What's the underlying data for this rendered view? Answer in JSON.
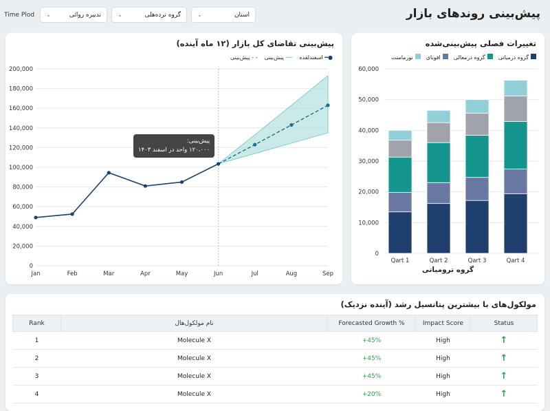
{
  "header": {
    "title": "پیش‌بینی روندهای بازار",
    "time_label": "Time Plod",
    "filters": [
      "تدبیره روائی",
      "گروه ترده‌هلی",
      "استان"
    ]
  },
  "line_card": {
    "title": "پیش‌بینی تقاضای کل بازار (۱۲ ماه آینده)",
    "legend": [
      "اسفندلقده",
      "پیش‌بینی",
      "پیش‌بینی"
    ],
    "tooltip": {
      "line1": "پیش‌بینی:",
      "line2": "۱۲۰،۰۰۰ واحد در اسفند ۱۴۰۳"
    }
  },
  "chart_data": [
    {
      "type": "line",
      "title": "پیش‌بینی تقاضای کل بازار (۱۲ ماه آینده)",
      "x": [
        "Jan",
        "Feb",
        "Mar",
        "Apr",
        "May",
        "Jun",
        "Jul",
        "Aug",
        "Sep"
      ],
      "ylim": [
        0,
        200000
      ],
      "yticks": [
        "0",
        "20,000",
        "40,000",
        "60,000",
        "80,000",
        "100,000",
        "120,000",
        "140,000",
        "160,000",
        "180,000",
        "200,000"
      ],
      "series": [
        {
          "name": "اسفندلقده",
          "values": [
            49000,
            52500,
            94500,
            81000,
            85000,
            103500,
            null,
            null,
            null
          ]
        },
        {
          "name": "پیش‌بینی",
          "values": [
            null,
            null,
            null,
            null,
            null,
            103500,
            123000,
            143000,
            163000
          ]
        },
        {
          "name": "پیش‌بینی band upper",
          "values": [
            null,
            null,
            null,
            null,
            null,
            103500,
            133000,
            163000,
            193000
          ]
        },
        {
          "name": "پیش‌بینی band lower",
          "values": [
            null,
            null,
            null,
            null,
            null,
            103500,
            114000,
            124500,
            135000
          ]
        }
      ],
      "grid": true,
      "legend": "top-right"
    },
    {
      "type": "bar",
      "stacked": true,
      "title": "تغییرات فصلی پیش‌بینی‌شده",
      "xlabel": "گروه ترومیاتی",
      "categories": [
        "Qart 1",
        "Qart 2",
        "Qart 3",
        "Qart 4"
      ],
      "ylim": [
        0,
        60000
      ],
      "yticks": [
        "0",
        "10,000",
        "20,000",
        "30,000",
        "40,000",
        "50,000",
        "60,000"
      ],
      "series": [
        {
          "name": "گروه درمیانی",
          "color": "#1f3f6e",
          "values": [
            13500,
            16200,
            17200,
            19400
          ]
        },
        {
          "name": "افوبای",
          "color": "#6878a3",
          "values": [
            6300,
            6800,
            7500,
            8000
          ]
        },
        {
          "name": "گروه درمعالی",
          "color": "#14968f",
          "values": [
            11500,
            13000,
            13700,
            15500
          ]
        },
        {
          "name": "",
          "color": "#a0a3ab",
          "values": [
            5500,
            6500,
            7200,
            8300
          ]
        },
        {
          "name": "نورمامنت",
          "color": "#93cfd8",
          "values": [
            3200,
            4000,
            4400,
            5100
          ]
        }
      ],
      "legend": "top"
    }
  ],
  "table": {
    "title": "مولکول‌های با بیشترین پتانسیل رشد (آینده نزدیک)",
    "headers": [
      "Rank",
      "نام مولکول‌هال",
      "Forecasted Growth %",
      "Impact Score",
      "Status"
    ],
    "rows": [
      [
        "1",
        "Molecule X",
        "+45%",
        "High",
        "↑"
      ],
      [
        "2",
        "Molecule X",
        "+45%",
        "High",
        "↑"
      ],
      [
        "3",
        "Molecule X",
        "+45%",
        "High",
        "↑"
      ],
      [
        "4",
        "Molecule X",
        "+20%",
        "High",
        "↑"
      ]
    ]
  }
}
